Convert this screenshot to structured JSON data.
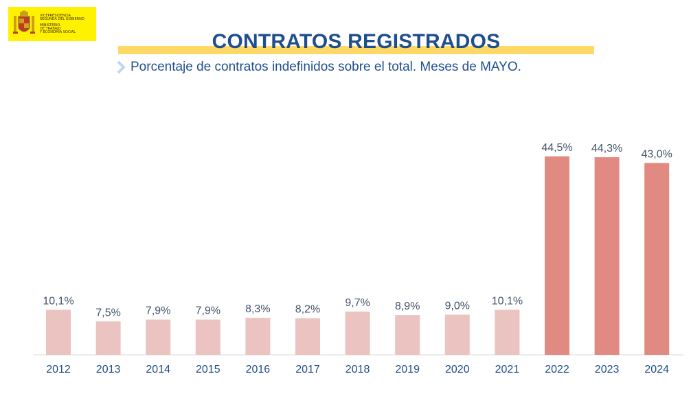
{
  "colors": {
    "title": "#1f4e8c",
    "subtitle": "#1f4e8c",
    "highlight_band": "#ffd966",
    "bar_light": "#ebc3c0",
    "bar_dark": "#e08a82",
    "axis_labels": "#1f4e8c",
    "data_labels": "#44546a",
    "baseline": "#d9d9d9",
    "logo_bg": "#fff100"
  },
  "logo": {
    "icon": "spanish-coat-of-arms-icon",
    "lines": [
      "VICEPRESIDENCIA",
      "SEGUNDA DEL GOBIERNO",
      "MINISTERIO",
      "DE TRABAJO",
      "Y ECONOMÍA SOCIAL"
    ]
  },
  "header": {
    "title": "CONTRATOS REGISTRADOS",
    "subtitle": "Porcentaje de contratos indefinidos sobre el total. Meses de MAYO.",
    "subtitle_icon": "chevron-right-icon"
  },
  "chart_data": {
    "type": "bar",
    "title": "CONTRATOS REGISTRADOS",
    "subtitle": "Porcentaje de contratos indefinidos sobre el total. Meses de MAYO.",
    "categories": [
      "2012",
      "2013",
      "2014",
      "2015",
      "2016",
      "2017",
      "2018",
      "2019",
      "2020",
      "2021",
      "2022",
      "2023",
      "2024"
    ],
    "values": [
      10.1,
      7.5,
      7.9,
      7.9,
      8.3,
      8.2,
      9.7,
      8.9,
      9.0,
      10.1,
      44.5,
      44.3,
      43.0
    ],
    "labels": [
      "10,1%",
      "7,5%",
      "7,9%",
      "7,9%",
      "8,3%",
      "8,2%",
      "9,7%",
      "8,9%",
      "9,0%",
      "10,1%",
      "44,5%",
      "44,3%",
      "43,0%"
    ],
    "highlighted_categories": [
      "2022",
      "2023",
      "2024"
    ],
    "xlabel": "",
    "ylabel": "",
    "ylim": [
      0,
      50
    ],
    "grid": false,
    "legend": "none"
  }
}
